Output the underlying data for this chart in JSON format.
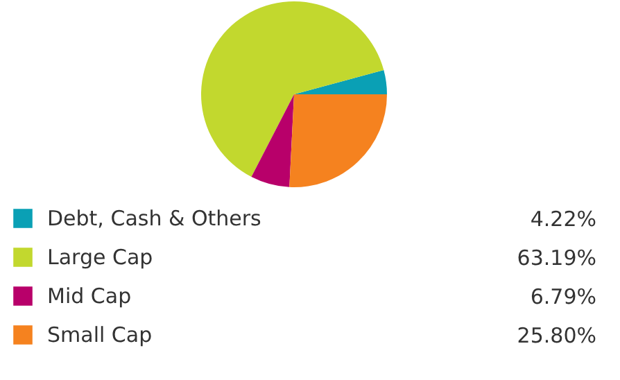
{
  "chart_data": {
    "type": "pie",
    "categories": [
      "Debt, Cash & Others",
      "Large Cap",
      "Mid Cap",
      "Small Cap"
    ],
    "values": [
      4.22,
      63.19,
      6.79,
      25.8
    ],
    "value_labels": [
      "4.22%",
      "63.19%",
      "6.79%",
      "25.80%"
    ],
    "colors": [
      "#0aa0b5",
      "#c2d82e",
      "#b8006a",
      "#f5821f"
    ],
    "legend": "bottom"
  }
}
